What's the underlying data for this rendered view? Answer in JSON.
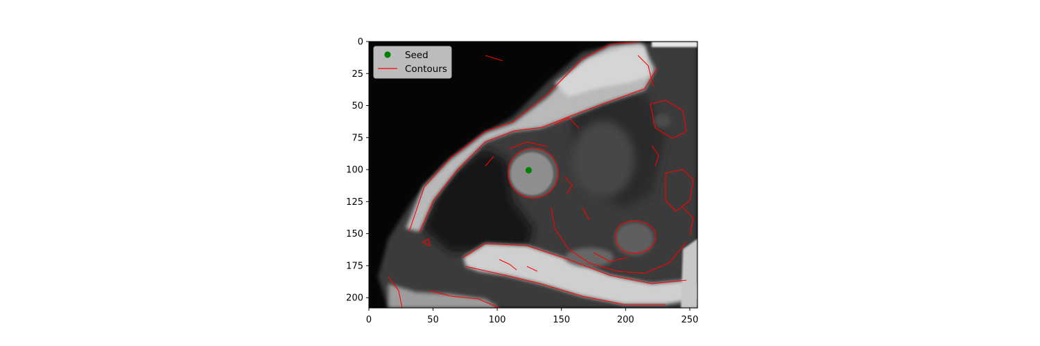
{
  "image_plot": {
    "x_axis": {
      "ticks": [
        0,
        50,
        100,
        150,
        200,
        250
      ],
      "range": [
        0,
        256
      ]
    },
    "y_axis": {
      "ticks": [
        0,
        25,
        50,
        75,
        100,
        125,
        150,
        175,
        200
      ],
      "range": [
        0,
        208
      ],
      "inverted": true
    },
    "seed_point": {
      "x": 124,
      "y": 100
    },
    "legend": {
      "placement": "top-left",
      "entries": [
        "Seed",
        "Contours"
      ]
    },
    "colors": {
      "seed": "#008000",
      "contours": "#ff0000",
      "frame": "#000000"
    }
  }
}
